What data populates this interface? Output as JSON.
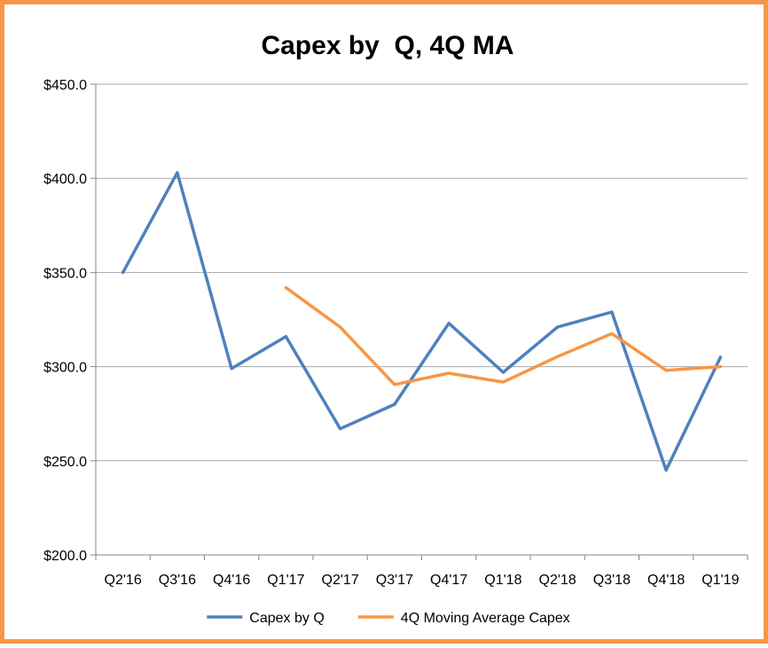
{
  "chart_data": {
    "type": "line",
    "title": "Capex by  Q, 4Q MA",
    "xlabel": "",
    "ylabel": "",
    "categories": [
      "Q2'16",
      "Q3'16",
      "Q4'16",
      "Q1'17",
      "Q2'17",
      "Q3'17",
      "Q4'17",
      "Q1'18",
      "Q2'18",
      "Q3'18",
      "Q4'18",
      "Q1'19"
    ],
    "y_ticks": [
      "$200.0",
      "$250.0",
      "$300.0",
      "$350.0",
      "$400.0",
      "$450.0"
    ],
    "ylim": [
      200,
      450
    ],
    "grid": true,
    "legend_position": "bottom",
    "series": [
      {
        "name": "Capex by Q",
        "color": "#4F81BD",
        "values": [
          350,
          403,
          299,
          316,
          267,
          280,
          323,
          297,
          321,
          329,
          245,
          305
        ]
      },
      {
        "name": "4Q Moving Average Capex",
        "color": "#F79646",
        "values": [
          null,
          null,
          null,
          342,
          321,
          290.5,
          296.5,
          291.8,
          305.3,
          317.5,
          298,
          300
        ]
      }
    ]
  },
  "frame": {
    "border_color": "#F79646"
  }
}
